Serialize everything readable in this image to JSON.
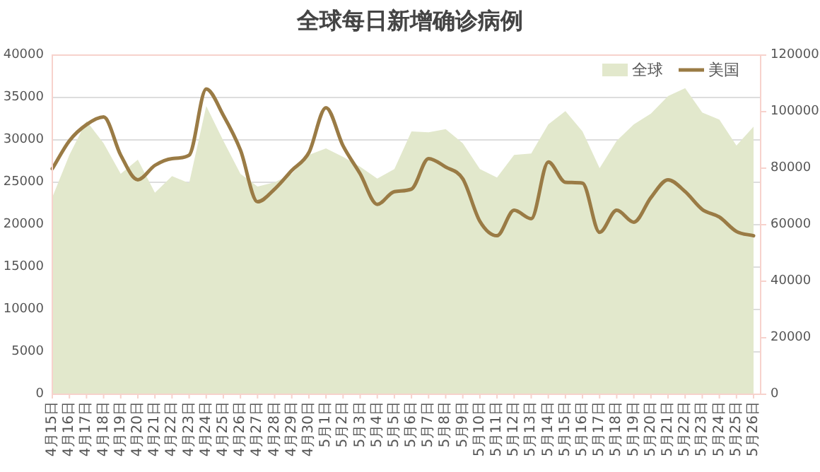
{
  "chart_data": {
    "type": "line",
    "title": "全球每日新增确诊病例",
    "categories": [
      "4月15日",
      "4月16日",
      "4月17日",
      "4月18日",
      "4月19日",
      "4月20日",
      "4月21日",
      "4月22日",
      "4月23日",
      "4月24日",
      "4月25日",
      "4月26日",
      "4月27日",
      "4月28日",
      "4月29日",
      "4月30日",
      "5月1日",
      "5月2日",
      "5月3日",
      "5月4日",
      "5月5日",
      "5月6日",
      "5月7日",
      "5月8日",
      "5月9日",
      "5月10日",
      "5月11日",
      "5月12日",
      "5月13日",
      "5月14日",
      "5月15日",
      "5月16日",
      "5月17日",
      "5月18日",
      "5月19日",
      "5月20日",
      "5月21日",
      "5月22日",
      "5月23日",
      "5月24日",
      "5月25日",
      "5月26日"
    ],
    "series": [
      {
        "name": "全球",
        "type": "area",
        "axis": "y2",
        "color": "#e2e8cc",
        "values": [
          69700,
          84700,
          96700,
          88800,
          78000,
          83000,
          71300,
          77200,
          74700,
          102000,
          89700,
          78000,
          73500,
          75000,
          78000,
          84700,
          87000,
          84000,
          80500,
          76300,
          79700,
          93000,
          92700,
          93800,
          88800,
          79700,
          76700,
          84700,
          85200,
          95500,
          100200,
          93000,
          80000,
          89700,
          95500,
          99300,
          105500,
          108300,
          99700,
          97200,
          88000,
          94700
        ]
      },
      {
        "name": "美国",
        "axis": "y",
        "color": "#9a7b45",
        "values": [
          26600,
          29900,
          31800,
          32700,
          28200,
          25300,
          27000,
          27800,
          28200,
          36000,
          32900,
          28800,
          22700,
          24200,
          26400,
          28500,
          33800,
          29300,
          26000,
          22400,
          23900,
          24200,
          27800,
          26800,
          25400,
          20400,
          18700,
          21700,
          20700,
          27400,
          25000,
          24900,
          19100,
          21700,
          20300,
          23200,
          25300,
          23900,
          21800,
          20900,
          19200,
          18700
        ]
      }
    ],
    "ylim": [
      0,
      40000
    ],
    "yticks": [
      0,
      5000,
      10000,
      15000,
      20000,
      25000,
      30000,
      35000,
      40000
    ],
    "y2lim": [
      0,
      120000
    ],
    "y2ticks": [
      0,
      20000,
      40000,
      60000,
      80000,
      100000,
      120000
    ],
    "grid": "y",
    "legend": "top right"
  }
}
